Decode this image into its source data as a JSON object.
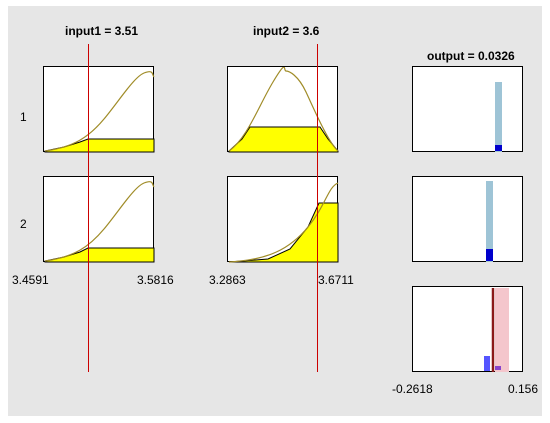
{
  "viewer": {
    "input1_title": "input1 = 3.51",
    "input2_title": "input2 = 3.6",
    "output_title": "output = 0.0326",
    "rules": [
      "1",
      "2"
    ],
    "input1_range": [
      "3.4591",
      "3.5816"
    ],
    "input2_range": [
      "3.2863",
      "3.6711"
    ],
    "output_range": [
      "-0.2618",
      "0.156"
    ]
  },
  "colors": {
    "background": "#e6e6e6",
    "curve": "#a08c28",
    "fill": "#ffff00",
    "cursor": "#cc0000",
    "output_bar": "#9ec4d6",
    "output_mark": "#0000cc",
    "aggregate_line": "#8b1a1a",
    "aggregate_shade": "#f4c6cc",
    "aggregate_mark": "#5555ff"
  }
}
